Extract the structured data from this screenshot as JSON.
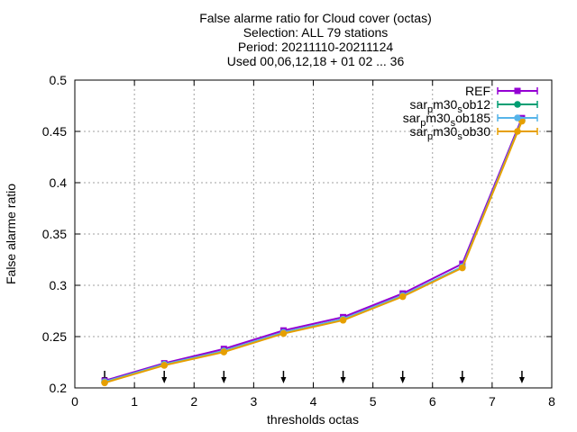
{
  "chart_data": {
    "type": "line",
    "title_lines": [
      "False alarme ratio  for Cloud cover (octas)",
      "Selection: ALL      79 stations",
      "Period: 20211110-20211124",
      "Used 00,06,12,18 + 01 02 ... 36"
    ],
    "xlabel": "thresholds octas",
    "ylabel": "False alarme ratio",
    "xlim": [
      0,
      8
    ],
    "ylim": [
      0.2,
      0.5
    ],
    "xticks": [
      "0",
      "1",
      "2",
      "3",
      "4",
      "5",
      "6",
      "7",
      "8"
    ],
    "yticks": [
      "0.2",
      "0.25",
      "0.3",
      "0.35",
      "0.4",
      "0.45",
      "0.5"
    ],
    "grid": true,
    "legend_position": "top-right",
    "x": [
      0.5,
      1.5,
      2.5,
      3.5,
      4.5,
      5.5,
      6.5,
      7.5
    ],
    "series": [
      {
        "name": "REF",
        "legend_parts": [
          [
            "REF",
            ""
          ]
        ],
        "color": "#9400d3",
        "marker": "square",
        "values": [
          0.207,
          0.224,
          0.238,
          0.256,
          0.269,
          0.292,
          0.321,
          0.463
        ]
      },
      {
        "name": "sar_pm30_sob12",
        "legend_parts": [
          [
            "sar",
            ""
          ],
          [
            "p",
            "sub"
          ],
          [
            "m30",
            ""
          ],
          [
            "s",
            "sub"
          ],
          [
            "ob12",
            ""
          ]
        ],
        "color": "#009e73",
        "marker": "circle",
        "values": [
          0.206,
          0.223,
          0.236,
          0.254,
          0.267,
          0.29,
          0.318,
          0.461
        ]
      },
      {
        "name": "sar_pm30_sob185",
        "legend_parts": [
          [
            "sar",
            ""
          ],
          [
            "p",
            "sub"
          ],
          [
            "m30",
            ""
          ],
          [
            "s",
            "sub"
          ],
          [
            "ob185",
            ""
          ]
        ],
        "color": "#56b4e9",
        "marker": "circle",
        "values": [
          0.206,
          0.223,
          0.236,
          0.254,
          0.267,
          0.29,
          0.318,
          0.461
        ]
      },
      {
        "name": "sar_pm30_sob30",
        "legend_parts": [
          [
            "sar",
            ""
          ],
          [
            "p",
            "sub"
          ],
          [
            "m30",
            ""
          ],
          [
            "s",
            "sub"
          ],
          [
            "ob30",
            ""
          ]
        ],
        "color": "#e69f00",
        "marker": "circle",
        "values": [
          0.205,
          0.222,
          0.235,
          0.253,
          0.266,
          0.289,
          0.317,
          0.46
        ]
      }
    ],
    "arrow_markers_x": [
      0.5,
      1.5,
      2.5,
      3.5,
      4.5,
      5.5,
      6.5,
      7.5
    ]
  }
}
